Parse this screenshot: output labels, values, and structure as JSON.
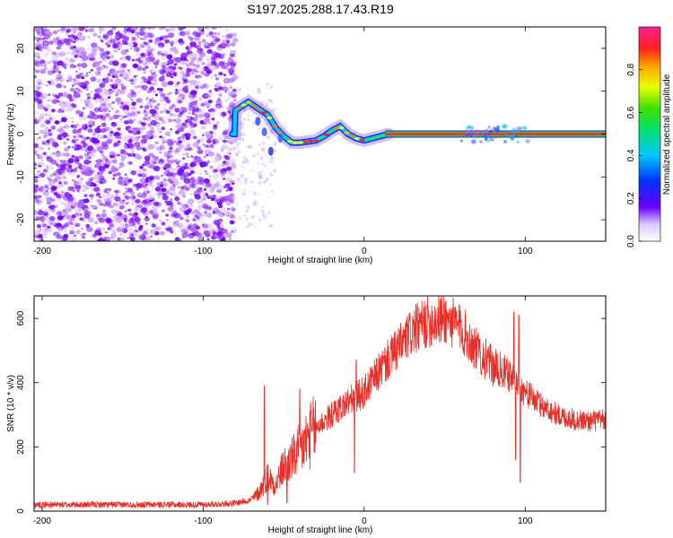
{
  "title": "S197.2025.288.17.43.R19",
  "colors": {
    "snr_line": "#e8302a",
    "axis": "#000000",
    "carrier_band": "#d4403a"
  },
  "chart_data": [
    {
      "type": "heatmap",
      "name": "spectrogram",
      "xlabel": "Height of straight line (km)",
      "ylabel": "Frequency (Hz)",
      "xlim": [
        -205,
        150
      ],
      "ylim": [
        -25,
        25
      ],
      "xticks": [
        -200,
        -100,
        0,
        100
      ],
      "yticks": [
        -20,
        -10,
        0,
        10,
        20
      ],
      "xtick_labels": [
        "-200",
        "-100",
        "0",
        "100"
      ],
      "ytick_labels": [
        "-20",
        "-10",
        "0",
        "10",
        "20"
      ],
      "colorbar": {
        "label": "Normalized spectral amplitude",
        "range": [
          0,
          1
        ],
        "ticks": [
          0,
          0.2,
          0.4,
          0.6,
          0.8
        ],
        "tick_labels": [
          "0.0",
          "0.2",
          "0.4",
          "0.6",
          "0.8"
        ]
      },
      "noise_region_x": [
        -205,
        -80
      ],
      "ridge": [
        {
          "x": -80,
          "f": 5.5
        },
        {
          "x": -72,
          "f": 7.5
        },
        {
          "x": -66,
          "f": 6
        },
        {
          "x": -60,
          "f": 4.5
        },
        {
          "x": -55,
          "f": 1.5
        },
        {
          "x": -50,
          "f": -0.5
        },
        {
          "x": -45,
          "f": -2
        },
        {
          "x": -40,
          "f": -2
        },
        {
          "x": -30,
          "f": -1.5
        },
        {
          "x": -25,
          "f": -0.5
        },
        {
          "x": -20,
          "f": 0.8
        },
        {
          "x": -15,
          "f": 1.8
        },
        {
          "x": -10,
          "f": 0
        },
        {
          "x": -5,
          "f": -1
        },
        {
          "x": 0,
          "f": -1.5
        },
        {
          "x": 5,
          "f": -1
        },
        {
          "x": 10,
          "f": -0.5
        },
        {
          "x": 15,
          "f": 0
        },
        {
          "x": 150,
          "f": 0
        }
      ]
    },
    {
      "type": "line",
      "name": "snr",
      "xlabel": "Height of straight line (km)",
      "ylabel": "SNR (10 * v/v)",
      "xlim": [
        -205,
        150
      ],
      "ylim": [
        0,
        670
      ],
      "xticks": [
        -200,
        -100,
        0,
        100
      ],
      "yticks": [
        0,
        200,
        400,
        600
      ],
      "xtick_labels": [
        "-200",
        "-100",
        "0",
        "100"
      ],
      "ytick_labels": [
        "0",
        "200",
        "400",
        "600"
      ],
      "envelope": [
        {
          "x": -205,
          "y": 20
        },
        {
          "x": -100,
          "y": 20
        },
        {
          "x": -80,
          "y": 25
        },
        {
          "x": -70,
          "y": 35
        },
        {
          "x": -65,
          "y": 60
        },
        {
          "x": -60,
          "y": 110
        },
        {
          "x": -55,
          "y": 80
        },
        {
          "x": -50,
          "y": 140
        },
        {
          "x": -45,
          "y": 160
        },
        {
          "x": -40,
          "y": 190
        },
        {
          "x": -30,
          "y": 260
        },
        {
          "x": -20,
          "y": 300
        },
        {
          "x": -10,
          "y": 340
        },
        {
          "x": 0,
          "y": 370
        },
        {
          "x": 10,
          "y": 440
        },
        {
          "x": 20,
          "y": 500
        },
        {
          "x": 30,
          "y": 560
        },
        {
          "x": 40,
          "y": 590
        },
        {
          "x": 50,
          "y": 600
        },
        {
          "x": 60,
          "y": 570
        },
        {
          "x": 70,
          "y": 500
        },
        {
          "x": 80,
          "y": 450
        },
        {
          "x": 90,
          "y": 420
        },
        {
          "x": 100,
          "y": 370
        },
        {
          "x": 110,
          "y": 330
        },
        {
          "x": 120,
          "y": 300
        },
        {
          "x": 130,
          "y": 285
        },
        {
          "x": 140,
          "y": 280
        },
        {
          "x": 150,
          "y": 285
        }
      ],
      "spikes": [
        {
          "x": -62,
          "y": 390
        },
        {
          "x": -60,
          "y": 20
        },
        {
          "x": -48,
          "y": 25
        },
        {
          "x": -40,
          "y": 380
        },
        {
          "x": -38,
          "y": 150
        },
        {
          "x": -6,
          "y": 120
        },
        {
          "x": -5,
          "y": 470
        },
        {
          "x": 93,
          "y": 620
        },
        {
          "x": 96,
          "y": 610
        },
        {
          "x": 94,
          "y": 160
        },
        {
          "x": 97,
          "y": 90
        }
      ]
    }
  ]
}
